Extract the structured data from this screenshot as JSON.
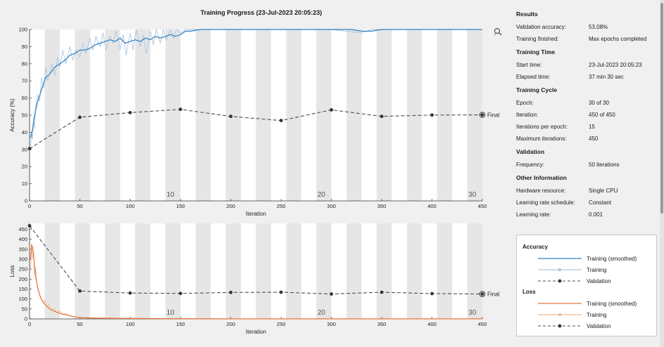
{
  "window": {
    "title": "Training Progress (23-Jul-2023 20:05:23)"
  },
  "chart_data": [
    {
      "type": "line",
      "name": "accuracy",
      "xlabel": "Iteration",
      "ylabel": "Accuracy (%)",
      "xlim": [
        0,
        450
      ],
      "ylim": [
        0,
        100
      ],
      "xticks": [
        0,
        50,
        100,
        150,
        200,
        250,
        300,
        350,
        400,
        450
      ],
      "yticks": [
        0,
        10,
        20,
        30,
        40,
        50,
        60,
        70,
        80,
        90,
        100
      ],
      "epoch_labels": [
        {
          "x": 140,
          "label": "10"
        },
        {
          "x": 290,
          "label": "20"
        },
        {
          "x": 440,
          "label": "30"
        }
      ],
      "final_label": "Final",
      "series": [
        {
          "name": "Training (smoothed)",
          "color": "#2c7fc4",
          "x": [
            1,
            3,
            5,
            8,
            12,
            16,
            20,
            25,
            30,
            35,
            40,
            45,
            50,
            55,
            60,
            65,
            70,
            75,
            80,
            85,
            90,
            95,
            100,
            105,
            110,
            115,
            120,
            125,
            130,
            135,
            140,
            145,
            150,
            155,
            160,
            170,
            180,
            200,
            220,
            250,
            280,
            300,
            320,
            330,
            340,
            350,
            370,
            400,
            420,
            450
          ],
          "y": [
            37,
            42,
            50,
            58,
            65,
            72,
            74,
            78,
            80,
            82,
            85,
            86,
            88,
            88,
            89,
            91,
            92,
            93,
            94,
            93,
            95,
            92,
            93,
            94,
            93,
            95,
            94,
            96,
            95,
            96,
            97,
            96,
            97,
            99,
            99,
            100,
            100,
            100,
            100,
            100,
            100,
            100,
            100,
            99,
            99,
            100,
            100,
            100,
            100,
            100
          ]
        },
        {
          "name": "Training",
          "color": "#a9c6e3",
          "x": [
            1,
            2,
            3,
            4,
            5,
            6,
            8,
            10,
            12,
            14,
            16,
            18,
            20,
            22,
            25,
            28,
            30,
            33,
            36,
            40,
            43,
            46,
            50,
            53,
            56,
            60,
            63,
            66,
            70,
            73,
            76,
            80,
            83,
            86,
            90,
            93,
            96,
            100,
            103,
            106,
            110,
            113,
            116,
            120,
            123,
            126,
            130,
            133,
            136,
            140,
            143,
            146,
            150,
            155,
            160,
            170,
            200,
            250,
            300,
            330,
            340,
            350,
            400,
            450
          ],
          "y": [
            32,
            40,
            36,
            48,
            42,
            55,
            62,
            58,
            72,
            66,
            78,
            70,
            75,
            80,
            73,
            84,
            78,
            88,
            80,
            90,
            82,
            88,
            84,
            92,
            86,
            95,
            88,
            96,
            90,
            98,
            88,
            96,
            92,
            99,
            88,
            97,
            85,
            98,
            88,
            100,
            90,
            97,
            86,
            99,
            91,
            100,
            92,
            100,
            94,
            100,
            95,
            100,
            98,
            100,
            100,
            100,
            100,
            100,
            100,
            98,
            100,
            100,
            100,
            100
          ]
        },
        {
          "name": "Validation",
          "color": "#4d4d4d",
          "x": [
            0,
            50,
            100,
            150,
            200,
            250,
            300,
            350,
            400,
            450
          ],
          "y": [
            30.5,
            48.8,
            51.5,
            53.4,
            49.3,
            46.9,
            53.1,
            49.3,
            50.1,
            50.2
          ]
        }
      ]
    },
    {
      "type": "line",
      "name": "loss",
      "xlabel": "Iteration",
      "ylabel": "Loss",
      "xlim": [
        0,
        450
      ],
      "ylim": [
        0,
        480
      ],
      "xticks": [
        0,
        50,
        100,
        150,
        200,
        250,
        300,
        350,
        400,
        450
      ],
      "yticks": [
        0,
        50,
        100,
        150,
        200,
        250,
        300,
        350,
        400,
        450
      ],
      "epoch_labels": [
        {
          "x": 140,
          "label": "10"
        },
        {
          "x": 290,
          "label": "20"
        },
        {
          "x": 440,
          "label": "30"
        }
      ],
      "final_label": "Final",
      "series": [
        {
          "name": "Training (smoothed)",
          "color": "#e8743b",
          "x": [
            1,
            2,
            3,
            4,
            5,
            6,
            8,
            10,
            12,
            15,
            18,
            20,
            25,
            30,
            35,
            40,
            45,
            50,
            60,
            80,
            100,
            150,
            200,
            300,
            450
          ],
          "y": [
            300,
            370,
            360,
            320,
            260,
            210,
            160,
            120,
            95,
            75,
            60,
            50,
            38,
            28,
            22,
            15,
            10,
            7,
            4,
            3,
            2,
            1,
            0.5,
            0.3,
            0.2
          ]
        },
        {
          "name": "Training",
          "color": "#f4b898",
          "x": [
            1,
            2,
            3,
            4,
            5,
            6,
            7,
            9,
            11,
            13,
            15,
            17,
            19,
            21,
            24,
            27,
            30,
            33,
            36,
            40,
            45,
            50,
            60,
            70,
            80,
            90,
            100,
            120,
            150,
            200,
            300,
            450
          ],
          "y": [
            250,
            380,
            300,
            340,
            220,
            260,
            180,
            140,
            110,
            85,
            95,
            60,
            75,
            40,
            55,
            30,
            42,
            20,
            28,
            15,
            12,
            6,
            8,
            3,
            5,
            2,
            4,
            1,
            1,
            0.5,
            0.3,
            0.2
          ]
        },
        {
          "name": "Validation",
          "color": "#4d4d4d",
          "x": [
            0,
            50,
            100,
            150,
            200,
            250,
            300,
            350,
            400,
            450
          ],
          "y": [
            468,
            140,
            130,
            128,
            133,
            134,
            125,
            134,
            127,
            125
          ]
        }
      ]
    }
  ],
  "info": {
    "results_title": "Results",
    "validation_accuracy_label": "Validation accuracy:",
    "validation_accuracy_value": "53.08%",
    "training_finished_label": "Training finished:",
    "training_finished_value": "Max epochs completed",
    "training_time_title": "Training Time",
    "start_time_label": "Start time:",
    "start_time_value": "23-Jul-2023 20:05:23",
    "elapsed_time_label": "Elapsed time:",
    "elapsed_time_value": "37 min 30 sec",
    "training_cycle_title": "Training Cycle",
    "epoch_label": "Epoch:",
    "epoch_value": "30 of 30",
    "iteration_label": "Iteration:",
    "iteration_value": "450 of 450",
    "iter_per_epoch_label": "Iterations per epoch:",
    "iter_per_epoch_value": "15",
    "max_iter_label": "Maximum iterations:",
    "max_iter_value": "450",
    "validation_title": "Validation",
    "frequency_label": "Frequency:",
    "frequency_value": "50 iterations",
    "other_title": "Other Information",
    "hardware_label": "Hardware resource:",
    "hardware_value": "Single CPU",
    "lr_schedule_label": "Learning rate schedule:",
    "lr_schedule_value": "Constant",
    "lr_label": "Learning rate:",
    "lr_value": "0.001"
  },
  "legend": {
    "accuracy_title": "Accuracy",
    "loss_title": "Loss",
    "training_smoothed": "Training (smoothed)",
    "training": "Training",
    "validation": "Validation",
    "acc_smoothed_color": "#2c7fc4",
    "acc_training_color": "#a9c6e3",
    "loss_smoothed_color": "#e8743b",
    "loss_training_color": "#f4b898",
    "validation_color": "#4d4d4d"
  },
  "icons": {
    "zoom": "zoom-icon"
  }
}
